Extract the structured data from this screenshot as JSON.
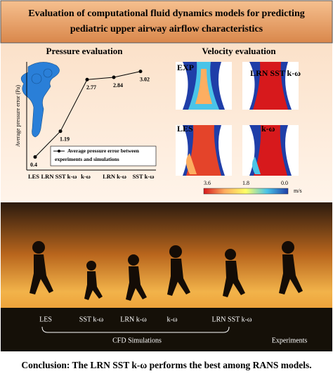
{
  "header": {
    "title_line1": "Evaluation of computational fluid dynamics models for predicting",
    "title_line2": "pediatric upper airway airflow characteristics"
  },
  "chart_data": {
    "type": "line",
    "title": "Pressure evaluation",
    "y_label": "Average pressure error (Pa)",
    "categories": [
      "LES",
      "LRN SST k-ω",
      "k-ω",
      "LRN k-ω",
      "SST k-ω"
    ],
    "series": [
      {
        "name": "Average pressure error between experiments and simulations",
        "color": "#000000",
        "values": [
          0.4,
          1.19,
          2.77,
          2.84,
          3.02
        ]
      }
    ],
    "ylim": [
      0,
      3.4
    ]
  },
  "velocity": {
    "title": "Velocity evaluation",
    "panels": [
      "EXP",
      "LRN SST k-ω",
      "LES",
      "k-ω"
    ],
    "colorbar": {
      "ticks": [
        "3.6",
        "1.8",
        "0.0"
      ],
      "unit": "m/s"
    }
  },
  "scene": {
    "labels": [
      "LES",
      "SST k-ω",
      "LRN k-ω",
      "k-ω",
      "LRN SST k-ω"
    ],
    "group": "CFD Simulations",
    "experiments": "Experiments"
  },
  "conclusion": "Conclusion: The LRN SST k-ω performs the best among RANS models."
}
